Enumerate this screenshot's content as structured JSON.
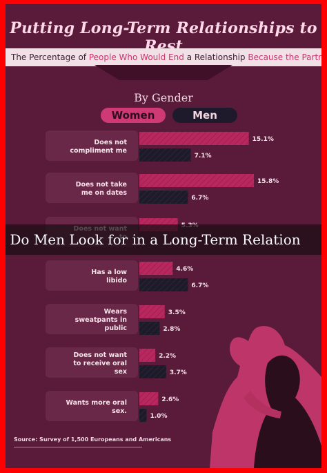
{
  "title": "Putting Long-Term Relationships to Rest",
  "subtitle": {
    "part1": "The Percentage of",
    "part2": "People Who Would End",
    "part3": "a Relationship",
    "part4": "Because the Partner ..."
  },
  "section_title": "By Gender",
  "legend": {
    "women": "Women",
    "men": "Men"
  },
  "caption": "t Do Men Look for in a Long-Term Relation",
  "source": "Source: Survey of 1,500 Europeans and Americans",
  "colors": {
    "women": "#b8285e",
    "men": "#1d1a2a",
    "background": "#5a1b3b",
    "frame": "#ff0000"
  },
  "chart_data": {
    "type": "bar",
    "orientation": "horizontal",
    "categories": [
      "Does not compliment me",
      "Does not take me on dates",
      "Does not want to",
      "Has a low libido",
      "Wears sweatpants in public",
      "Does not want to receive oral sex",
      "Wants more oral sex."
    ],
    "series": [
      {
        "name": "Women",
        "values": [
          15.1,
          15.8,
          5.3,
          4.6,
          3.5,
          2.2,
          2.6
        ]
      },
      {
        "name": "Men",
        "values": [
          7.1,
          6.7,
          null,
          6.7,
          2.8,
          3.7,
          1.0
        ]
      }
    ],
    "value_labels": {
      "Women": [
        "15.1%",
        "15.8%",
        "5.3%",
        "4.6%",
        "3.5%",
        "2.2%",
        "2.6%"
      ],
      "Men": [
        "7.1%",
        "6.7%",
        "",
        "6.7%",
        "2.8%",
        "3.7%",
        "1.0%"
      ]
    },
    "unit": "%"
  }
}
